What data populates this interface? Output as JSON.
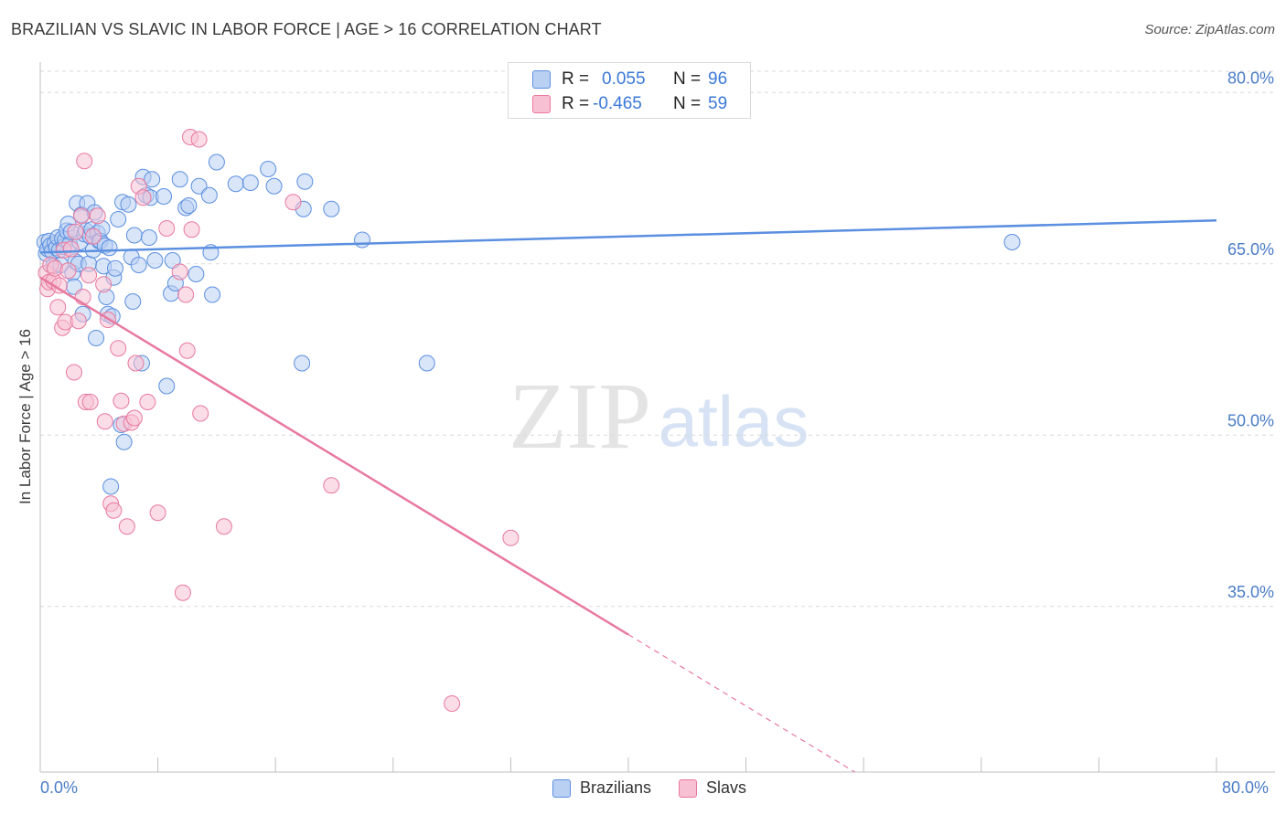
{
  "chart_data": {
    "type": "scatter",
    "title": "BRAZILIAN VS SLAVIC IN LABOR FORCE | AGE > 16 CORRELATION CHART",
    "source": "Source: ZipAtlas.com",
    "xlabel": "",
    "ylabel": "In Labor Force | Age > 16",
    "xlim": [
      0,
      80
    ],
    "ylim": [
      20.5,
      82.5
    ],
    "x_tick_labels": [
      "0.0%",
      "80.0%"
    ],
    "y_ticks": [
      {
        "value": 80,
        "label": "80.0%"
      },
      {
        "value": 65,
        "label": "65.0%"
      },
      {
        "value": 50,
        "label": "50.0%"
      },
      {
        "value": 35,
        "label": "35.0%"
      }
    ],
    "grid": "horizontal dashed",
    "watermark": {
      "part1": "ZIP",
      "part2": "atlas"
    },
    "legend_stats": [
      {
        "series": "Brazilians",
        "r_label": "R =",
        "r_value": "0.055",
        "n_label": "N =",
        "n_value": "96"
      },
      {
        "series": "Slavs",
        "r_label": "R =",
        "r_value": "-0.465",
        "n_label": "N =",
        "n_value": "59"
      }
    ],
    "series": [
      {
        "name": "Brazilians",
        "color": "#5b8fe0",
        "fill": "#b9d0f3",
        "trend": {
          "x0": 0,
          "y0": 66.0,
          "x1": 80,
          "y1": 68.8,
          "solid_to": 80
        },
        "points": [
          [
            0.3,
            66.9
          ],
          [
            0.4,
            65.9
          ],
          [
            0.5,
            66.3
          ],
          [
            0.6,
            67.0
          ],
          [
            0.7,
            66.6
          ],
          [
            0.8,
            66.1
          ],
          [
            0.9,
            64.8
          ],
          [
            1.0,
            66.8
          ],
          [
            1.1,
            66.4
          ],
          [
            1.2,
            67.3
          ],
          [
            1.3,
            66.2
          ],
          [
            1.4,
            64.9
          ],
          [
            1.5,
            67.2
          ],
          [
            1.6,
            66.5
          ],
          [
            1.7,
            67.1
          ],
          [
            1.8,
            67.9
          ],
          [
            1.9,
            68.5
          ],
          [
            2.0,
            66.7
          ],
          [
            2.1,
            67.8
          ],
          [
            2.2,
            64.2
          ],
          [
            2.3,
            63.0
          ],
          [
            2.4,
            65.2
          ],
          [
            2.5,
            70.3
          ],
          [
            2.6,
            65.0
          ],
          [
            2.7,
            66.9
          ],
          [
            2.8,
            69.3
          ],
          [
            2.9,
            60.6
          ],
          [
            3.0,
            67.6
          ],
          [
            3.1,
            67.9
          ],
          [
            3.2,
            70.3
          ],
          [
            3.3,
            65.0
          ],
          [
            3.4,
            67.4
          ],
          [
            3.5,
            68.0
          ],
          [
            3.6,
            66.2
          ],
          [
            3.7,
            69.5
          ],
          [
            3.8,
            58.5
          ],
          [
            3.9,
            67.7
          ],
          [
            4.0,
            67.0
          ],
          [
            4.1,
            67.0
          ],
          [
            4.2,
            68.1
          ],
          [
            4.3,
            64.8
          ],
          [
            4.4,
            66.6
          ],
          [
            4.5,
            62.1
          ],
          [
            4.6,
            60.6
          ],
          [
            4.7,
            66.4
          ],
          [
            4.8,
            45.5
          ],
          [
            4.9,
            60.4
          ],
          [
            5.0,
            63.8
          ],
          [
            5.1,
            64.6
          ],
          [
            5.3,
            68.9
          ],
          [
            5.5,
            50.9
          ],
          [
            5.6,
            70.4
          ],
          [
            5.7,
            49.4
          ],
          [
            6.0,
            70.2
          ],
          [
            6.2,
            65.6
          ],
          [
            6.3,
            61.7
          ],
          [
            6.4,
            67.5
          ],
          [
            6.7,
            64.9
          ],
          [
            6.9,
            56.3
          ],
          [
            7.0,
            72.6
          ],
          [
            7.2,
            71.0
          ],
          [
            7.4,
            67.3
          ],
          [
            7.5,
            70.8
          ],
          [
            7.6,
            72.4
          ],
          [
            7.8,
            65.3
          ],
          [
            8.4,
            70.9
          ],
          [
            8.6,
            54.3
          ],
          [
            8.9,
            62.4
          ],
          [
            9.0,
            65.3
          ],
          [
            9.2,
            63.3
          ],
          [
            9.5,
            72.4
          ],
          [
            9.9,
            69.9
          ],
          [
            10.1,
            70.1
          ],
          [
            10.6,
            64.1
          ],
          [
            10.8,
            71.8
          ],
          [
            11.5,
            71.0
          ],
          [
            11.6,
            66.0
          ],
          [
            11.7,
            62.3
          ],
          [
            12.0,
            73.9
          ],
          [
            13.3,
            72.0
          ],
          [
            14.3,
            72.1
          ],
          [
            15.5,
            73.3
          ],
          [
            15.9,
            71.8
          ],
          [
            17.8,
            56.3
          ],
          [
            17.9,
            69.8
          ],
          [
            18.0,
            72.2
          ],
          [
            19.8,
            69.8
          ],
          [
            21.9,
            67.1
          ],
          [
            26.3,
            56.3
          ],
          [
            66.1,
            66.9
          ]
        ]
      },
      {
        "name": "Slavs",
        "color": "#e8799e",
        "fill": "#f7c1d3",
        "trend": {
          "x0": 0,
          "y0": 63.8,
          "x1": 55.4,
          "y1": 20.5,
          "solid_to": 40
        },
        "points": [
          [
            0.4,
            64.2
          ],
          [
            0.5,
            62.8
          ],
          [
            0.6,
            63.4
          ],
          [
            0.7,
            64.9
          ],
          [
            0.9,
            63.5
          ],
          [
            1.0,
            64.6
          ],
          [
            1.2,
            61.2
          ],
          [
            1.3,
            63.1
          ],
          [
            1.5,
            59.4
          ],
          [
            1.6,
            66.2
          ],
          [
            1.7,
            59.9
          ],
          [
            1.9,
            64.4
          ],
          [
            2.1,
            66.3
          ],
          [
            2.3,
            55.5
          ],
          [
            2.4,
            67.8
          ],
          [
            2.6,
            60.0
          ],
          [
            2.8,
            69.2
          ],
          [
            2.9,
            62.1
          ],
          [
            3.0,
            74.0
          ],
          [
            3.1,
            52.9
          ],
          [
            3.3,
            64.0
          ],
          [
            3.4,
            52.9
          ],
          [
            3.6,
            67.4
          ],
          [
            3.9,
            69.2
          ],
          [
            4.3,
            63.2
          ],
          [
            4.4,
            51.2
          ],
          [
            4.6,
            60.1
          ],
          [
            4.8,
            44.0
          ],
          [
            5.0,
            43.4
          ],
          [
            5.3,
            57.6
          ],
          [
            5.5,
            53.0
          ],
          [
            5.7,
            51.0
          ],
          [
            5.9,
            42.0
          ],
          [
            6.2,
            51.1
          ],
          [
            6.4,
            51.5
          ],
          [
            6.5,
            56.3
          ],
          [
            6.7,
            71.8
          ],
          [
            7.0,
            70.8
          ],
          [
            7.3,
            52.9
          ],
          [
            8.0,
            43.2
          ],
          [
            8.6,
            68.1
          ],
          [
            9.5,
            64.3
          ],
          [
            9.7,
            36.2
          ],
          [
            9.9,
            62.3
          ],
          [
            10.0,
            57.4
          ],
          [
            10.2,
            76.1
          ],
          [
            10.3,
            68.0
          ],
          [
            10.8,
            75.9
          ],
          [
            10.9,
            51.9
          ],
          [
            12.5,
            42.0
          ],
          [
            17.2,
            70.4
          ],
          [
            19.8,
            45.6
          ],
          [
            28.0,
            26.5
          ],
          [
            32.0,
            41.0
          ]
        ]
      }
    ]
  }
}
